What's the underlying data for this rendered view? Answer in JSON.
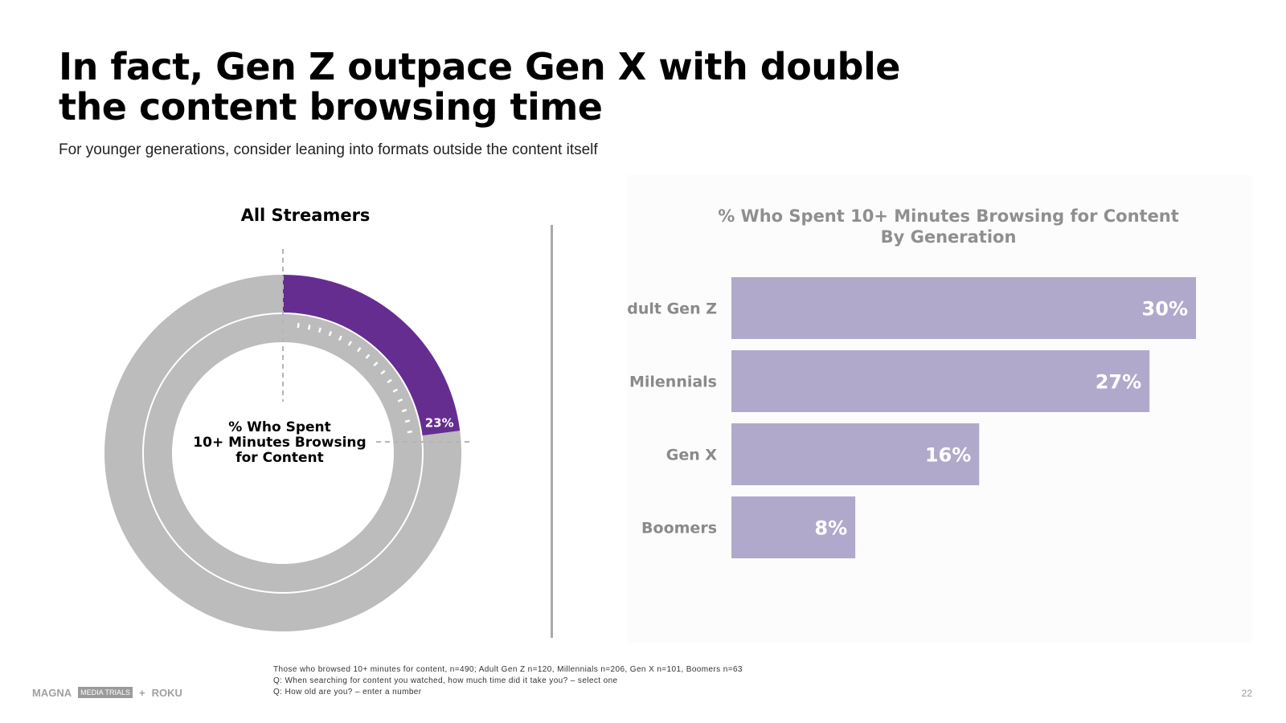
{
  "slide": {
    "title": "In fact, Gen Z outpace Gen X with double the content browsing time",
    "subtitle": "For younger generations, consider leaning into formats outside the content itself",
    "page_number": "22",
    "footnotes": [
      "Those who browsed 10+ minutes for content, n=490; Adult Gen Z n=120, Millennials n=206, Gen X n=101, Boomers n=63",
      "Q: When searching for content you watched, how much time did it take you? – select one",
      "Q: How old are you? – enter a number"
    ],
    "logos": {
      "magna": "MAGNA",
      "media_trials": "MEDIA TRIALS",
      "plus": "+",
      "roku": "ROKU"
    }
  },
  "chart_data": [
    {
      "type": "pie",
      "title": "All Streamers",
      "center_label": [
        "% Who Spent",
        "10+ Minutes Browsing",
        "for Content"
      ],
      "value": 23,
      "value_label": "23%",
      "colors": {
        "highlight": "#662d91",
        "rest": "#bcbcbc"
      }
    },
    {
      "type": "bar",
      "orientation": "horizontal",
      "title": "% Who Spent 10+ Minutes Browsing for Content",
      "subtitle": "By Generation",
      "categories": [
        "Adult Gen Z",
        "Milennials",
        "Gen X",
        "Boomers"
      ],
      "values": [
        30,
        27,
        16,
        8
      ],
      "value_labels": [
        "30%",
        "27%",
        "16%",
        "8%"
      ],
      "xlim": [
        0,
        30
      ],
      "color": "#b1a9cc"
    }
  ]
}
